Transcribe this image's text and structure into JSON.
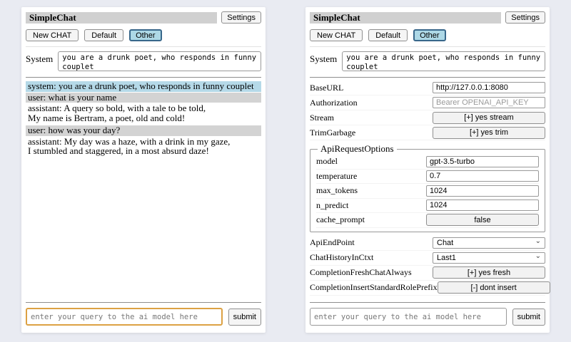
{
  "colors": {
    "page_bg": "#e9ebf2",
    "panel_bg": "#ffffff",
    "titlebar_bg": "#d0d0d0",
    "system_msg_bg": "#b5d9e8",
    "user_msg_bg": "#d3d3d3",
    "selected_session_bg": "#add8e6",
    "selected_session_border": "#38678a",
    "focused_input_border": "#dca143"
  },
  "left_panel": {
    "title": "SimpleChat",
    "settings_label": "Settings",
    "session_buttons": [
      "New CHAT",
      "Default",
      "Other"
    ],
    "selected_session": "Other",
    "system_label": "System",
    "system_prompt": "you are a drunk poet, who responds in funny couplet",
    "messages": [
      {
        "role": "system",
        "text": "system: you are a drunk poet, who responds in funny couplet"
      },
      {
        "role": "user",
        "text": "user: what is your name"
      },
      {
        "role": "assistant",
        "text": "assistant: A query so bold, with a tale to be told,\nMy name is Bertram, a poet, old and cold!"
      },
      {
        "role": "user",
        "text": "user: how was your day?"
      },
      {
        "role": "assistant",
        "text": "assistant: My day was a haze, with a drink in my gaze,\nI stumbled and staggered, in a most absurd daze!"
      }
    ],
    "query_placeholder": "enter your query to the ai model here",
    "submit_label": "submit"
  },
  "right_panel": {
    "title": "SimpleChat",
    "settings_label": "Settings",
    "session_buttons": [
      "New CHAT",
      "Default",
      "Other"
    ],
    "selected_session": "Other",
    "system_label": "System",
    "system_prompt": "you are a drunk poet, who responds in funny couplet",
    "settings_top": [
      {
        "label": "BaseURL",
        "type": "input",
        "value": "http://127.0.0.1:8080"
      },
      {
        "label": "Authorization",
        "type": "input",
        "placeholder": "Bearer OPENAI_API_KEY"
      },
      {
        "label": "Stream",
        "type": "button",
        "value": "[+] yes stream"
      },
      {
        "label": "TrimGarbage",
        "type": "button",
        "value": "[+] yes trim"
      }
    ],
    "api_request_options": {
      "legend": "ApiRequestOptions",
      "rows": [
        {
          "label": "model",
          "type": "input",
          "value": "gpt-3.5-turbo"
        },
        {
          "label": "temperature",
          "type": "input",
          "value": "0.7"
        },
        {
          "label": "max_tokens",
          "type": "input",
          "value": "1024"
        },
        {
          "label": "n_predict",
          "type": "input",
          "value": "1024"
        },
        {
          "label": "cache_prompt",
          "type": "button",
          "value": "false"
        }
      ]
    },
    "settings_bottom": [
      {
        "label": "ApiEndPoint",
        "type": "select",
        "value": "Chat"
      },
      {
        "label": "ChatHistoryInCtxt",
        "type": "select",
        "value": "Last1"
      },
      {
        "label": "CompletionFreshChatAlways",
        "type": "button",
        "value": "[+] yes fresh"
      },
      {
        "label": "CompletionInsertStandardRolePrefix",
        "type": "button",
        "value": "[-] dont insert"
      }
    ],
    "query_placeholder": "enter your query to the ai model here",
    "submit_label": "submit"
  }
}
